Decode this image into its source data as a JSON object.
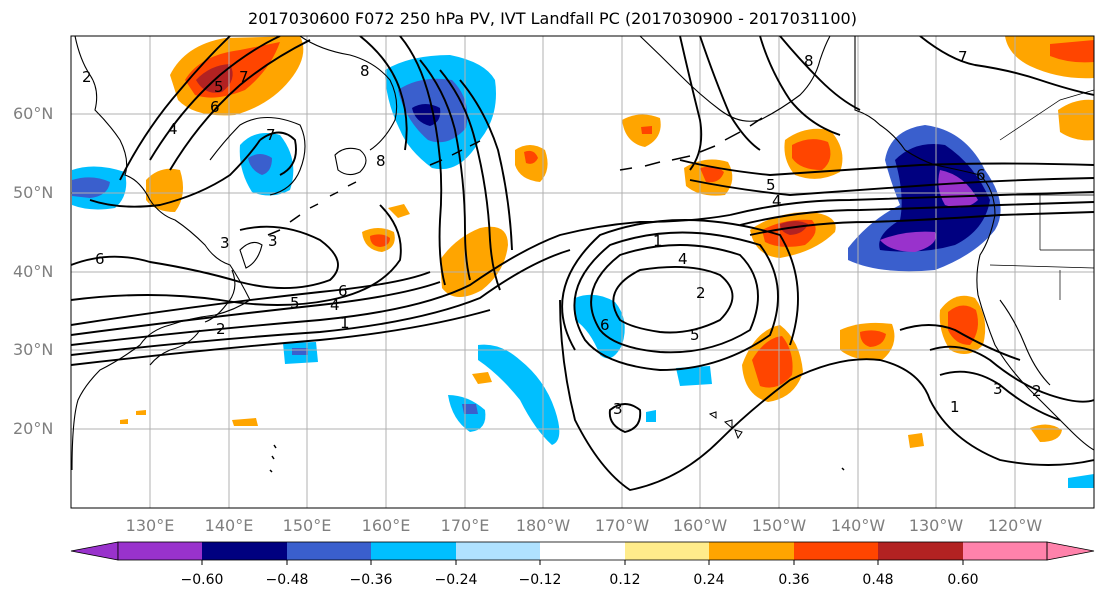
{
  "title": "2017030600 F072 250 hPa PV, IVT Landfall PC (2017030900 - 2017031100)",
  "map": {
    "lat_labels": [
      "60°N",
      "50°N",
      "40°N",
      "30°N",
      "20°N"
    ],
    "lon_labels": [
      "130°E",
      "140°E",
      "150°E",
      "160°E",
      "170°E",
      "180°W",
      "170°W",
      "160°W",
      "150°W",
      "140°W",
      "130°W",
      "120°W"
    ],
    "contour_labels": [
      "2",
      "4",
      "6",
      "7",
      "8",
      "8",
      "8",
      "7",
      "7",
      "5",
      "6",
      "5",
      "4",
      "1",
      "4",
      "6",
      "5",
      "3",
      "3",
      "2",
      "1",
      "6",
      "5",
      "4",
      "1",
      "2",
      "3",
      "6",
      "3",
      "2"
    ]
  },
  "colorbar": {
    "ticks": [
      "−0.60",
      "−0.48",
      "−0.36",
      "−0.24",
      "−0.12",
      "0.12",
      "0.24",
      "0.36",
      "0.48",
      "0.60"
    ],
    "colors": [
      "#9932cc",
      "#000080",
      "#3a5fcd",
      "#00bfff",
      "#b0e2ff",
      "#ffffff",
      "#ffec8b",
      "#ffa500",
      "#ff4500",
      "#b22222",
      "#ff82ab"
    ]
  }
}
